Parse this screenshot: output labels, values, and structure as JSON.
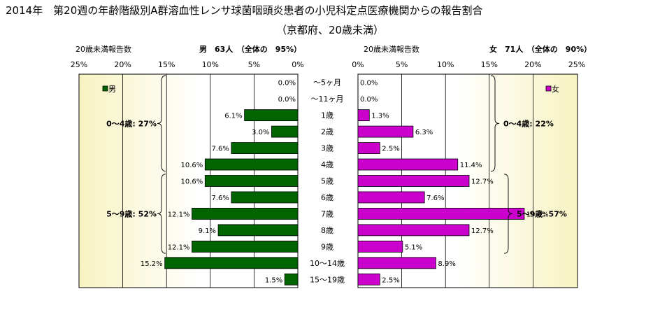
{
  "title_line1": "2014年　第20週の年齢階級別A群溶血性レンサ球菌咽頭炎患者の小児科定点医療機関からの報告割合",
  "title_line2": "（京都府、20歳未満）",
  "chart_data": {
    "type": "bar",
    "orientation": "horizontal",
    "layout": "population-pyramid",
    "unit": "%",
    "categories": [
      "〜5ヶ月",
      "〜11ヶ月",
      "1歳",
      "2歳",
      "3歳",
      "4歳",
      "5歳",
      "6歳",
      "7歳",
      "8歳",
      "9歳",
      "10〜14歳",
      "15〜19歳"
    ],
    "series": [
      {
        "key": "male",
        "name": "男",
        "header_label": "20歳未満報告数",
        "header_summary": "男　63人　（全体の　95%）",
        "color": "#006400",
        "values": [
          0.0,
          0.0,
          6.1,
          3.0,
          7.6,
          10.6,
          10.6,
          7.6,
          12.1,
          9.1,
          12.1,
          15.2,
          1.5
        ],
        "value_labels": [
          "0.0%",
          "0.0%",
          "6.1%",
          "3.0%",
          "7.6%",
          "10.6%",
          "10.6%",
          "7.6%",
          "12.1%",
          "9.1%",
          "12.1%",
          "15.2%",
          "1.5%"
        ],
        "groups": [
          {
            "label": "0〜4歳: 27%",
            "from": 0,
            "to": 5
          },
          {
            "label": "5〜9歳: 52%",
            "from": 6,
            "to": 10
          }
        ]
      },
      {
        "key": "female",
        "name": "女",
        "header_label": "20歳未満報告数",
        "header_summary": "女　71人　（全体の　90%）",
        "color": "#CC00CC",
        "values": [
          0.0,
          0.0,
          1.3,
          6.3,
          2.5,
          11.4,
          12.7,
          7.6,
          19.0,
          12.7,
          5.1,
          8.9,
          2.5
        ],
        "value_labels": [
          "0.0%",
          "0.0%",
          "1.3%",
          "6.3%",
          "2.5%",
          "11.4%",
          "12.7%",
          "7.6%",
          "19.0%",
          "12.7%",
          "5.1%",
          "8.9%",
          "2.5%"
        ],
        "groups": [
          {
            "label": "0〜4歳: 22%",
            "from": 0,
            "to": 5
          },
          {
            "label": "5〜9歳: 57%",
            "from": 6,
            "to": 10
          }
        ]
      }
    ],
    "xlim": [
      0,
      25
    ],
    "ticks": [
      0,
      5,
      10,
      15,
      20,
      25
    ],
    "tick_labels": [
      "0%",
      "5%",
      "10%",
      "15%",
      "20%",
      "25%"
    ],
    "grid": true,
    "legend_position": "top-left (male), top-right (female)"
  }
}
